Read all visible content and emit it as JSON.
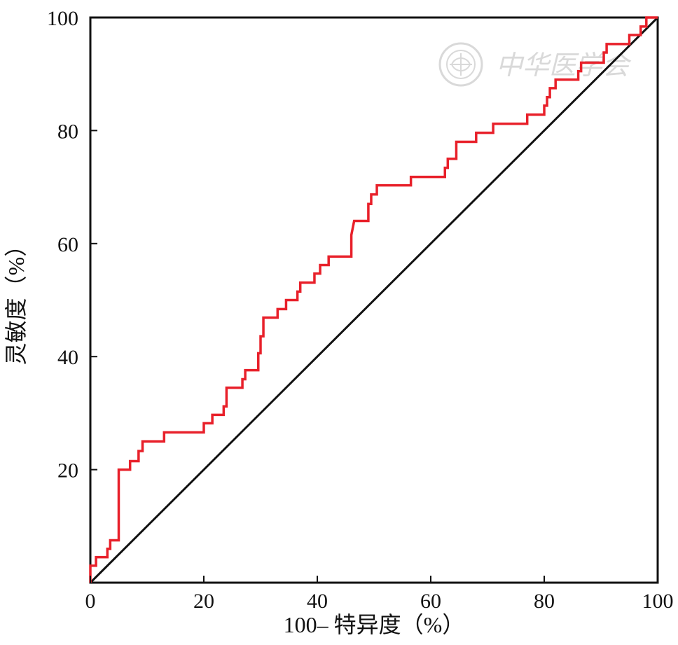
{
  "chart_data": {
    "type": "line",
    "title": "",
    "xlabel": "100– 特异度（%）",
    "ylabel": "灵敏度（%）",
    "xlim": [
      0,
      100
    ],
    "ylim": [
      0,
      100
    ],
    "x_ticks": [
      "0",
      "20",
      "40",
      "60",
      "80",
      "100"
    ],
    "y_ticks": [
      "20",
      "40",
      "60",
      "80",
      "100"
    ],
    "grid": false,
    "legend": "none",
    "colors": {
      "roc": "#e8202a",
      "reference": "#111111",
      "axes": "#111111",
      "watermark": "#d9d9d9"
    },
    "series": [
      {
        "points": [
          [
            0,
            0
          ],
          [
            0,
            3
          ],
          [
            1,
            3
          ],
          [
            1,
            4.5
          ],
          [
            3,
            4.5
          ],
          [
            3,
            6
          ],
          [
            3.5,
            6
          ],
          [
            3.5,
            7.5
          ],
          [
            5,
            7.5
          ],
          [
            5,
            20
          ],
          [
            7,
            20
          ],
          [
            7,
            21.5
          ],
          [
            8.5,
            21.5
          ],
          [
            8.5,
            23.3
          ],
          [
            9.2,
            23.3
          ],
          [
            9.2,
            25
          ],
          [
            13,
            25
          ],
          [
            13,
            26.6
          ],
          [
            20,
            26.6
          ],
          [
            20,
            28.2
          ],
          [
            21.5,
            28.2
          ],
          [
            21.5,
            29.7
          ],
          [
            23.5,
            29.7
          ],
          [
            23.5,
            31.2
          ],
          [
            24,
            31.2
          ],
          [
            24,
            34.5
          ],
          [
            26.8,
            34.5
          ],
          [
            26.8,
            36
          ],
          [
            27.3,
            36
          ],
          [
            27.3,
            37.6
          ],
          [
            29.6,
            37.6
          ],
          [
            29.6,
            40.6
          ],
          [
            30,
            40.6
          ],
          [
            30,
            43.6
          ],
          [
            30.5,
            43.6
          ],
          [
            30.5,
            46.9
          ],
          [
            33,
            46.9
          ],
          [
            33,
            48.4
          ],
          [
            34.5,
            48.4
          ],
          [
            34.5,
            50
          ],
          [
            36.5,
            50
          ],
          [
            36.5,
            51.5
          ],
          [
            37,
            51.5
          ],
          [
            37,
            53.1
          ],
          [
            39.5,
            53.1
          ],
          [
            39.5,
            54.7
          ],
          [
            40.5,
            54.7
          ],
          [
            40.5,
            56.2
          ],
          [
            42,
            56.2
          ],
          [
            42,
            57.7
          ],
          [
            46,
            57.7
          ],
          [
            46,
            61.5
          ],
          [
            46.5,
            64
          ],
          [
            49,
            64
          ],
          [
            49,
            67
          ],
          [
            49.5,
            67
          ],
          [
            49.5,
            68.7
          ],
          [
            50.5,
            68.7
          ],
          [
            50.5,
            70.3
          ],
          [
            56.5,
            70.3
          ],
          [
            56.5,
            71.8
          ],
          [
            62.5,
            71.8
          ],
          [
            62.5,
            73.4
          ],
          [
            63,
            73.4
          ],
          [
            63,
            75
          ],
          [
            64.5,
            75
          ],
          [
            64.5,
            78
          ],
          [
            68,
            78
          ],
          [
            68,
            79.6
          ],
          [
            71,
            79.6
          ],
          [
            71,
            81.2
          ],
          [
            77,
            81.2
          ],
          [
            77,
            82.8
          ],
          [
            80,
            82.8
          ],
          [
            80,
            84.4
          ],
          [
            80.5,
            84.4
          ],
          [
            80.5,
            85.9
          ],
          [
            81,
            85.9
          ],
          [
            81,
            87.5
          ],
          [
            82,
            87.5
          ],
          [
            82,
            89
          ],
          [
            86,
            89
          ],
          [
            86,
            90.5
          ],
          [
            86.5,
            90.5
          ],
          [
            86.5,
            92
          ],
          [
            90.5,
            92
          ],
          [
            90.5,
            93.8
          ],
          [
            91,
            93.8
          ],
          [
            91,
            95.3
          ],
          [
            95,
            95.3
          ],
          [
            95,
            96.9
          ],
          [
            97,
            96.9
          ],
          [
            97,
            98.4
          ],
          [
            98,
            98.4
          ],
          [
            98,
            100
          ],
          [
            100,
            100
          ]
        ]
      },
      {
        "points": [
          [
            0,
            0
          ],
          [
            100,
            100
          ]
        ]
      }
    ]
  },
  "watermark": {
    "text": "中华医学会"
  }
}
